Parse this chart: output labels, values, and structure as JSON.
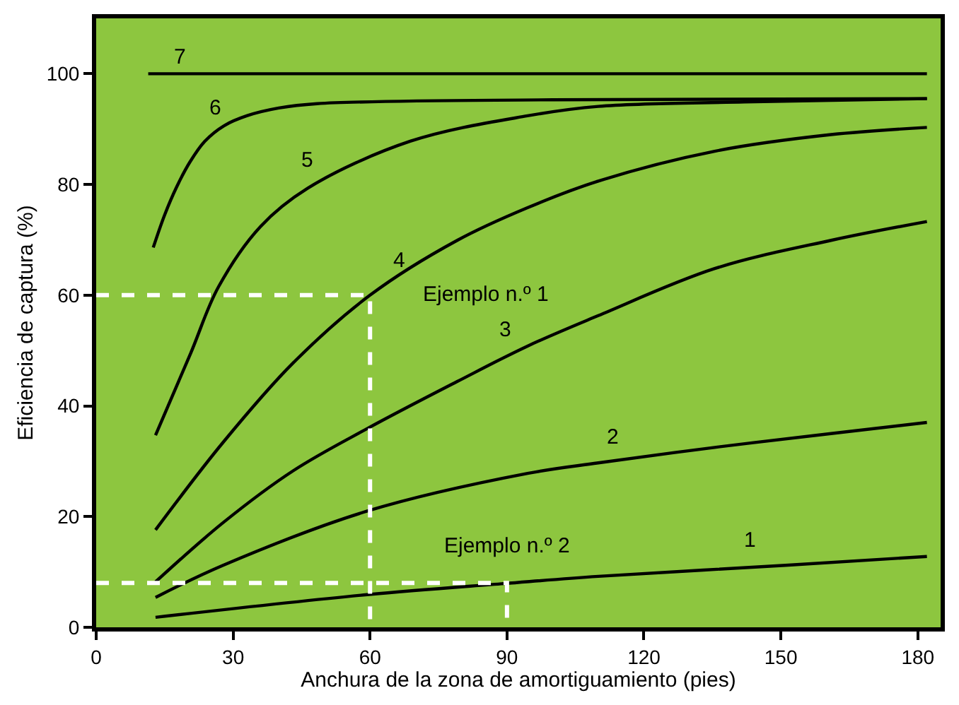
{
  "chart_data": {
    "type": "line",
    "xlabel": "Anchura de la zona de amortiguamiento (pies)",
    "ylabel": "Eficiencia de captura (%)",
    "xlim": [
      0,
      185
    ],
    "ylim": [
      0,
      110
    ],
    "xticks": [
      0,
      30,
      60,
      90,
      120,
      150,
      180
    ],
    "yticks": [
      0,
      20,
      40,
      60,
      80,
      100
    ],
    "grid": false,
    "legend": false,
    "marker": "none",
    "line_style": "solid",
    "series": [
      {
        "name": "1",
        "color": "#000000",
        "x": [
          13,
          59.4,
          89.4,
          110,
          151,
          182
        ],
        "values": [
          1.8,
          5.9,
          7.9,
          9.2,
          11.2,
          12.8
        ]
      },
      {
        "name": "2",
        "color": "#000000",
        "x": [
          13,
          27.8,
          59.4,
          94.5,
          110,
          135.5,
          161,
          182
        ],
        "values": [
          5.4,
          11.2,
          21,
          27.8,
          29.7,
          32.5,
          35,
          37
        ]
      },
      {
        "name": "3",
        "color": "#000000",
        "x": [
          13,
          27.8,
          43.2,
          59.4,
          79.1,
          94.5,
          110,
          135.5,
          161,
          182
        ],
        "values": [
          8.2,
          18.9,
          28.3,
          35.9,
          44.4,
          50.8,
          56.3,
          64.8,
          69.9,
          73.3
        ]
      },
      {
        "name": "4",
        "color": "#000000",
        "x": [
          13,
          27.8,
          43.2,
          60,
          79.1,
          94.5,
          110,
          135.5,
          161,
          182
        ],
        "values": [
          17.6,
          33.4,
          47.8,
          60,
          69.9,
          75.8,
          80.6,
          86,
          89,
          90.3
        ]
      },
      {
        "name": "5",
        "color": "#000000",
        "x": [
          13,
          20.7,
          26.8,
          36,
          46.3,
          68.8,
          94.5,
          110,
          142,
          182
        ],
        "values": [
          34.7,
          49.5,
          61.5,
          72.4,
          79.3,
          87.8,
          92.4,
          94.1,
          94.9,
          95.5
        ]
      },
      {
        "name": "6",
        "color": "#000000",
        "x": [
          12.5,
          15,
          17.6,
          20.5,
          23.8,
          28,
          33,
          40,
          48.4,
          100,
          182
        ],
        "values": [
          68.6,
          74.5,
          79.5,
          84,
          87.8,
          90.6,
          92.4,
          93.8,
          94.6,
          95.3,
          95.5
        ]
      },
      {
        "name": "7",
        "color": "#000000",
        "x": [
          11.4,
          182
        ],
        "values": [
          100,
          100
        ]
      },
      {
        "color": "#ffffff",
        "line_style": "dashed",
        "x": [
          0,
          60,
          60
        ],
        "values": [
          60,
          60,
          0
        ]
      },
      {
        "color": "#ffffff",
        "line_style": "dashed",
        "x": [
          0,
          90,
          90
        ],
        "values": [
          8,
          8,
          0
        ]
      }
    ],
    "annotations": [
      "Ejemplo n.º 1",
      "Ejemplo n.º 2"
    ]
  }
}
